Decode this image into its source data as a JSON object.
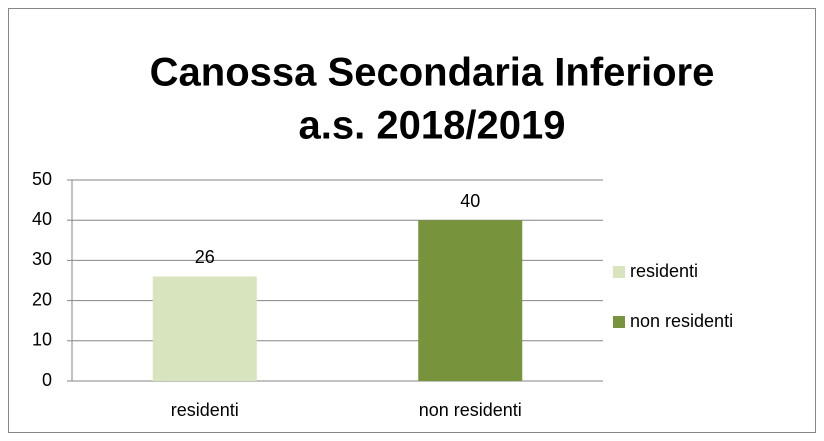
{
  "chart_data": {
    "type": "bar",
    "title": [
      "Canossa Secondaria Inferiore",
      "a.s. 2018/2019"
    ],
    "categories": [
      "residenti",
      "non residenti"
    ],
    "values": [
      26,
      40
    ],
    "colors": [
      "#d7e4bd",
      "#77933c"
    ],
    "ylim": [
      0,
      50
    ],
    "yticks": [
      0,
      10,
      20,
      30,
      40,
      50
    ],
    "grid": true,
    "legend": "right"
  }
}
